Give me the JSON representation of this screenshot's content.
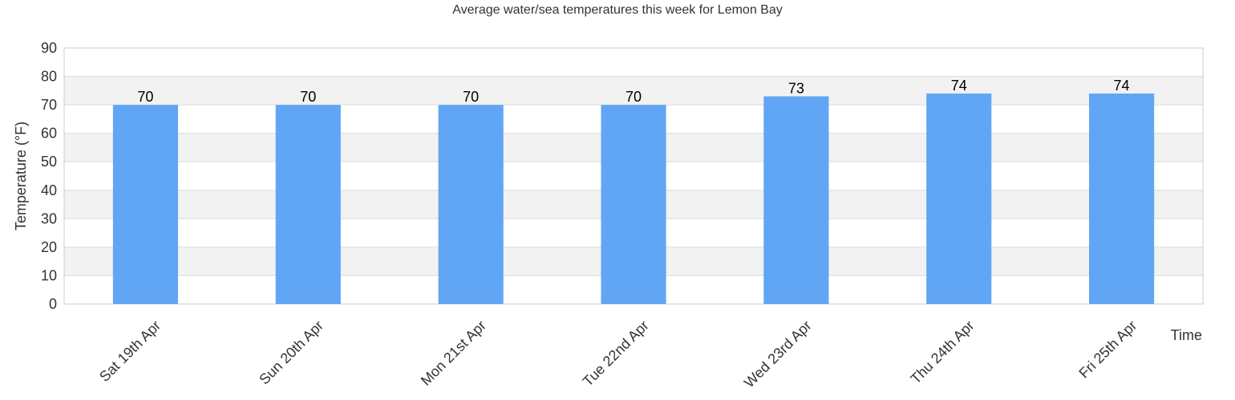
{
  "chart_data": {
    "type": "bar",
    "title": "Average water/sea temperatures this week for Lemon Bay",
    "xlabel": "Time",
    "ylabel": "Temperature (°F)",
    "categories": [
      "Sat 19th Apr",
      "Sun 20th Apr",
      "Mon 21st Apr",
      "Tue 22nd Apr",
      "Wed 23rd Apr",
      "Thu 24th Apr",
      "Fri 25th Apr"
    ],
    "series": [
      {
        "values": [
          70,
          70,
          70,
          70,
          73,
          74,
          74
        ]
      }
    ],
    "ylim": [
      0,
      90
    ],
    "yticks": [
      0,
      10,
      20,
      30,
      40,
      50,
      60,
      70,
      80,
      90
    ],
    "grid": true,
    "colors": {
      "bar": "#60a6f4",
      "band": "#f2f2f2",
      "grid": "#dddddd",
      "axis": "#cccccc"
    }
  }
}
